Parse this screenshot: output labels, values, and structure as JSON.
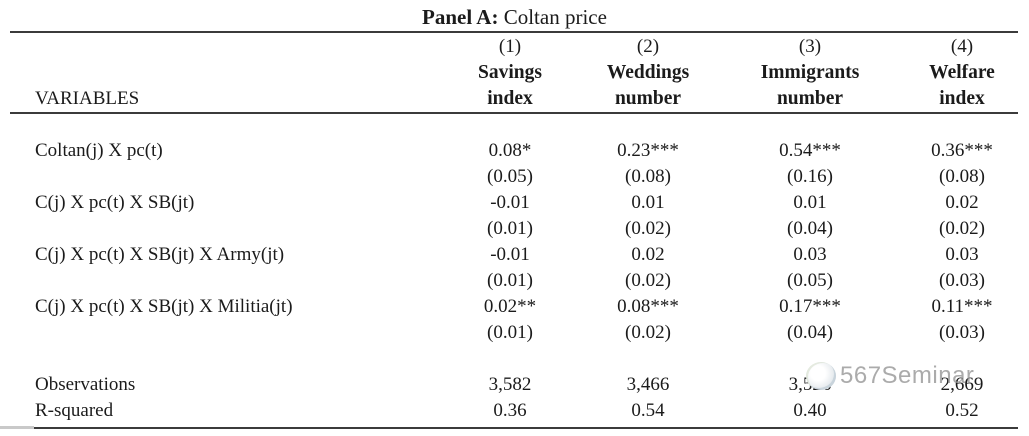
{
  "panel": {
    "label": "Panel A:",
    "title": "Coltan price"
  },
  "table": {
    "variables_header": "VARIABLES",
    "columns": [
      {
        "number": "(1)",
        "name_line1": "Savings",
        "name_line2": "index"
      },
      {
        "number": "(2)",
        "name_line1": "Weddings",
        "name_line2": "number"
      },
      {
        "number": "(3)",
        "name_line1": "Immigrants",
        "name_line2": "number"
      },
      {
        "number": "(4)",
        "name_line1": "Welfare",
        "name_line2": "index"
      }
    ],
    "rows": [
      {
        "label": "Coltan(j) X pc(t)",
        "coefficients": [
          "0.08*",
          "0.23***",
          "0.54***",
          "0.36***"
        ],
        "std_errors": [
          "(0.05)",
          "(0.08)",
          "(0.16)",
          "(0.08)"
        ]
      },
      {
        "label": "C(j) X pc(t) X SB(jt)",
        "coefficients": [
          "-0.01",
          "0.01",
          "0.01",
          "0.02"
        ],
        "std_errors": [
          "(0.01)",
          "(0.02)",
          "(0.04)",
          "(0.02)"
        ]
      },
      {
        "label": "C(j) X pc(t) X SB(jt) X Army(jt)",
        "coefficients": [
          "-0.01",
          "0.02",
          "0.03",
          "0.03"
        ],
        "std_errors": [
          "(0.01)",
          "(0.02)",
          "(0.05)",
          "(0.03)"
        ]
      },
      {
        "label": "C(j) X pc(t) X SB(jt) X Militia(jt)",
        "coefficients": [
          "0.02**",
          "0.08***",
          "0.17***",
          "0.11***"
        ],
        "std_errors": [
          "(0.01)",
          "(0.02)",
          "(0.04)",
          "(0.03)"
        ]
      }
    ],
    "summary_rows": [
      {
        "label": "Observations",
        "values": [
          "3,582",
          "3,466",
          "3,526",
          "2,669"
        ]
      },
      {
        "label": "R-squared",
        "values": [
          "0.36",
          "0.54",
          "0.40",
          "0.52"
        ]
      }
    ]
  },
  "watermark": {
    "text": "567Seminar",
    "color": "#949494"
  }
}
